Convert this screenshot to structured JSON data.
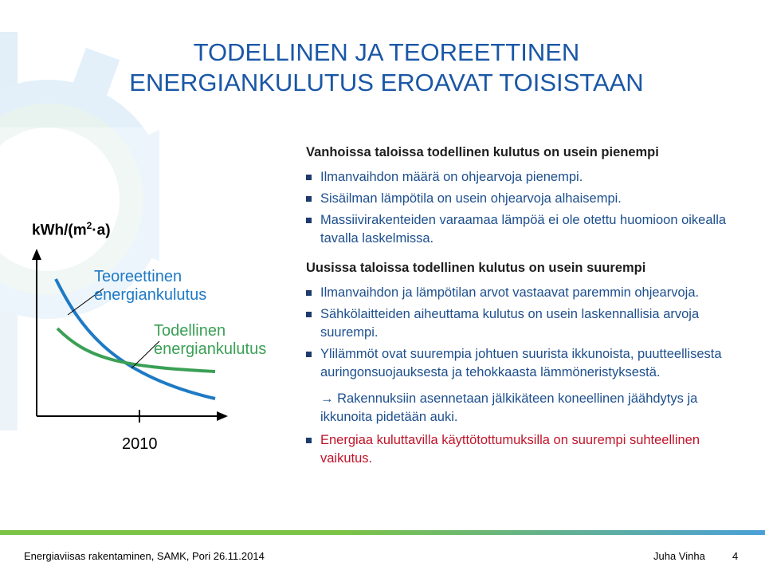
{
  "title": {
    "line1": "TODELLINEN JA TEOREETTINEN",
    "line2": "ENERGIANKULUTUS EROAVAT TOISISTAAN"
  },
  "chart": {
    "unit_prefix": "kWh/(m",
    "unit_sup": "2",
    "unit_suffix": "·a)",
    "theoretical_label_1": "Teoreettinen",
    "theoretical_label_2": "energiankulutus",
    "actual_label_1": "Todellinen",
    "actual_label_2": "energiankulutus",
    "year": "2010",
    "colors": {
      "theoretical": "#1f7ac5",
      "actual": "#3aa055"
    }
  },
  "content": {
    "section1_heading": "Vanhoissa taloissa todellinen kulutus on usein pienempi",
    "section1_items": [
      "Ilmanvaihdon määrä on ohjearvoja pienempi.",
      "Sisäilman lämpötila on usein ohjearvoja alhaisempi.",
      "Massiivirakenteiden varaamaa lämpöä ei ole otettu huomioon oikealla tavalla laskelmissa."
    ],
    "section2_heading": "Uusissa taloissa todellinen kulutus on usein suurempi",
    "section2_items": [
      "Ilmanvaihdon ja lämpötilan arvot vastaavat paremmin ohjearvoja.",
      "Sähkölaitteiden aiheuttama kulutus on usein laskennallisia arvoja suurempi.",
      "Ylilämmöt ovat suurempia johtuen suurista ikkunoista, puutteellisesta auringonsuojauksesta ja tehokkaasta lämmöneristyksestä."
    ],
    "arrow_note": "→ Rakennuksiin asennetaan jälkikäteen koneellinen jäähdytys ja ikkunoita pidetään auki.",
    "red_item": "Energiaa kuluttavilla käyttötottumuksilla on suurempi suhteellinen vaikutus."
  },
  "footer": {
    "left": "Energiaviisas rakentaminen, SAMK, Pori 26.11.2014",
    "author": "Juha Vinha",
    "page": "4"
  }
}
